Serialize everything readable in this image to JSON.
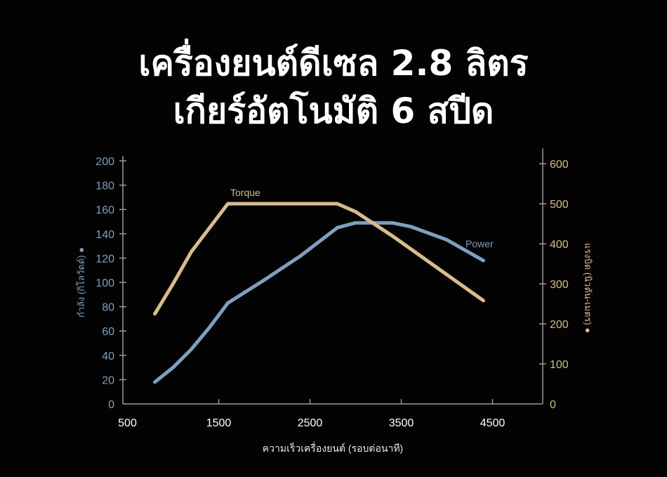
{
  "title_lines": [
    "เครื่องยนต์ดีเซล 2.8 ลิตร",
    "เกียร์อัตโนมัติ 6 สปีด"
  ],
  "chart_data": {
    "type": "line",
    "xlabel": "ความเร็วเครื่องยนต์ (รอบต่อนาที)",
    "ylabel_left": "กำลัง (กิโลวัตต์) ●",
    "ylabel_right": "แรงบิด (นิวตัน-เมตร) ●",
    "xlim": [
      450,
      5050
    ],
    "ylim_left": [
      0,
      200
    ],
    "ylim_right": [
      0,
      600
    ],
    "x_ticks": [
      500,
      1500,
      2500,
      3500,
      4500
    ],
    "y_ticks_left": [
      0,
      20,
      40,
      60,
      80,
      100,
      120,
      140,
      160,
      180,
      200
    ],
    "y_ticks_right": [
      0,
      100,
      200,
      300,
      400,
      500,
      600
    ],
    "grid": false,
    "colors": {
      "power": "#7f9fbf",
      "torque": "#d7bc8e",
      "axis": "#9a9a9a"
    },
    "series": [
      {
        "name": "Power",
        "axis": "left",
        "x": [
          800,
          1000,
          1200,
          1400,
          1600,
          2000,
          2400,
          2800,
          3000,
          3400,
          3600,
          4000,
          4400
        ],
        "y": [
          18,
          30,
          45,
          63,
          83,
          102,
          122,
          145,
          149,
          149,
          146,
          135,
          118
        ]
      },
      {
        "name": "Torque",
        "axis": "right",
        "x": [
          800,
          1000,
          1200,
          1600,
          2800,
          3000,
          3400,
          4400
        ],
        "y": [
          225,
          300,
          380,
          500,
          500,
          480,
          420,
          258
        ]
      }
    ]
  }
}
